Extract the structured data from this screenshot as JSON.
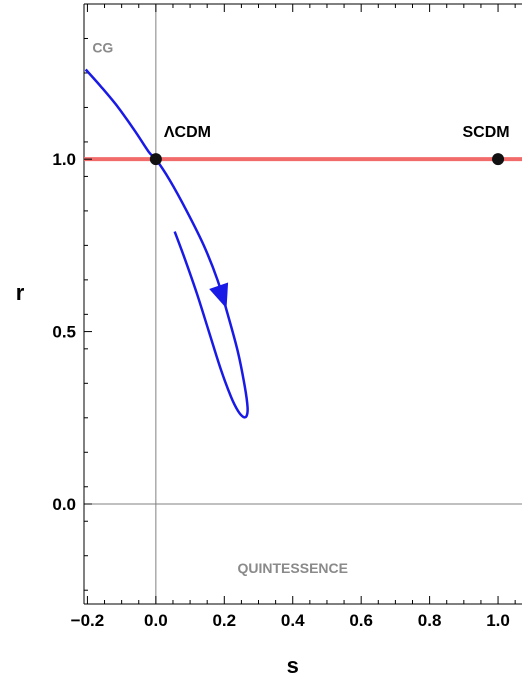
{
  "chart_data": {
    "type": "line",
    "title": "",
    "xlabel": "s",
    "ylabel": "r",
    "xlim": [
      -0.21,
      1.07
    ],
    "ylim": [
      -0.29,
      1.45
    ],
    "xticks": [
      {
        "value": -0.2,
        "label": "−0.2"
      },
      {
        "value": 0.0,
        "label": "0.0"
      },
      {
        "value": 0.2,
        "label": "0.2"
      },
      {
        "value": 0.4,
        "label": "0.4"
      },
      {
        "value": 0.6,
        "label": "0.6"
      },
      {
        "value": 0.8,
        "label": "0.8"
      },
      {
        "value": 1.0,
        "label": "1.0"
      }
    ],
    "yticks": [
      {
        "value": 0.0,
        "label": "0.0"
      },
      {
        "value": 0.5,
        "label": "0.5"
      },
      {
        "value": 1.0,
        "label": "1.0"
      }
    ],
    "reference_lines": [
      {
        "axis": "y",
        "value": 1.0,
        "color": "#f26b6b"
      },
      {
        "axis": "y",
        "value": 0.0,
        "color": "#808080"
      },
      {
        "axis": "x",
        "value": 0.0,
        "color": "#808080"
      }
    ],
    "series": [
      {
        "color": "#1a1ae6",
        "x": [
          -0.205,
          -0.16,
          -0.11,
          -0.06,
          -0.02,
          0.0,
          0.04,
          0.09,
          0.14,
          0.18,
          0.21,
          0.24,
          0.26,
          0.268,
          0.265,
          0.255,
          0.24,
          0.22,
          0.19,
          0.155,
          0.12,
          0.085,
          0.055
        ],
        "y": [
          1.26,
          1.21,
          1.15,
          1.08,
          1.02,
          1.0,
          0.94,
          0.85,
          0.75,
          0.65,
          0.55,
          0.44,
          0.34,
          0.28,
          0.255,
          0.253,
          0.27,
          0.31,
          0.39,
          0.5,
          0.61,
          0.71,
          0.79
        ],
        "arrow": {
          "x": 0.195,
          "y": 0.6,
          "dx": 0.035,
          "dy": -0.1
        }
      }
    ],
    "points": [
      {
        "x": 0.0,
        "y": 1.0,
        "label": "ΛCDM",
        "color": "#111111"
      },
      {
        "x": 1.0,
        "y": 1.0,
        "label": "SCDM",
        "color": "#111111"
      }
    ],
    "region_labels": [
      {
        "text": "CG",
        "x": -0.155,
        "y": 1.31
      },
      {
        "text": "QUINTESSENCE",
        "x": 0.4,
        "y": -0.2
      }
    ]
  }
}
